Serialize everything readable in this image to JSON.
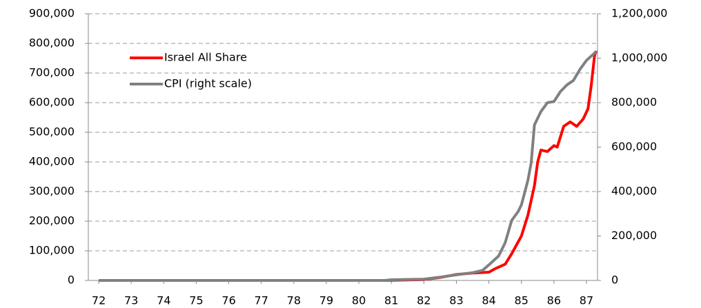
{
  "chart_data": {
    "type": "line",
    "xlim": [
      71.68,
      87.34
    ],
    "xticks": [
      72,
      73,
      74,
      75,
      76,
      77,
      78,
      79,
      80,
      81,
      82,
      83,
      84,
      85,
      86,
      87
    ],
    "ylim": [
      0,
      900000
    ],
    "yticks": [
      {
        "value": 0,
        "label": "0"
      },
      {
        "value": 100000,
        "label": "100,000"
      },
      {
        "value": 200000,
        "label": "200,000"
      },
      {
        "value": 300000,
        "label": "300,000"
      },
      {
        "value": 400000,
        "label": "400,000"
      },
      {
        "value": 500000,
        "label": "500,000"
      },
      {
        "value": 600000,
        "label": "600,000"
      },
      {
        "value": 700000,
        "label": "700,000"
      },
      {
        "value": 800000,
        "label": "800,000"
      },
      {
        "value": 900000,
        "label": "900,000"
      }
    ],
    "y2lim": [
      0,
      1200000
    ],
    "y2ticks": [
      {
        "value": 0,
        "label": "0"
      },
      {
        "value": 200000,
        "label": "200,000"
      },
      {
        "value": 400000,
        "label": "400,000"
      },
      {
        "value": 600000,
        "label": "600,000"
      },
      {
        "value": 800000,
        "label": "800,000"
      },
      {
        "value": 1000000,
        "label": "1,000,000"
      },
      {
        "value": 1200000,
        "label": "1,200,000"
      }
    ],
    "grid": true,
    "legend": "upper left",
    "series": [
      {
        "name": "Israel All Share",
        "color": "#ff0000",
        "axis": "y",
        "x": [
          72,
          80.8,
          82,
          82.5,
          83,
          83.5,
          84,
          84.2,
          84.5,
          84.7,
          85,
          85.2,
          85.4,
          85.5,
          85.6,
          85.8,
          86,
          86.1,
          86.3,
          86.5,
          86.7,
          86.9,
          87.05,
          87.15,
          87.25,
          87.3
        ],
        "values": [
          0,
          0,
          3000,
          10000,
          20000,
          25000,
          28000,
          40000,
          55000,
          90000,
          150000,
          220000,
          320000,
          400000,
          440000,
          435000,
          455000,
          450000,
          520000,
          535000,
          520000,
          545000,
          580000,
          660000,
          760000,
          775000
        ]
      },
      {
        "name": "CPI (right scale)",
        "color": "#808080",
        "axis": "y2",
        "x": [
          72,
          80.8,
          81,
          82,
          82.5,
          83,
          83.5,
          83.8,
          84,
          84.3,
          84.5,
          84.7,
          84.9,
          85,
          85.2,
          85.3,
          85.4,
          85.6,
          85.8,
          86,
          86.2,
          86.4,
          86.6,
          86.8,
          87,
          87.15,
          87.3
        ],
        "values": [
          0,
          0,
          3000,
          6000,
          15000,
          25000,
          35000,
          45000,
          70000,
          110000,
          170000,
          270000,
          310000,
          340000,
          450000,
          530000,
          700000,
          760000,
          800000,
          805000,
          850000,
          880000,
          900000,
          950000,
          990000,
          1010000,
          1030000
        ]
      }
    ]
  }
}
